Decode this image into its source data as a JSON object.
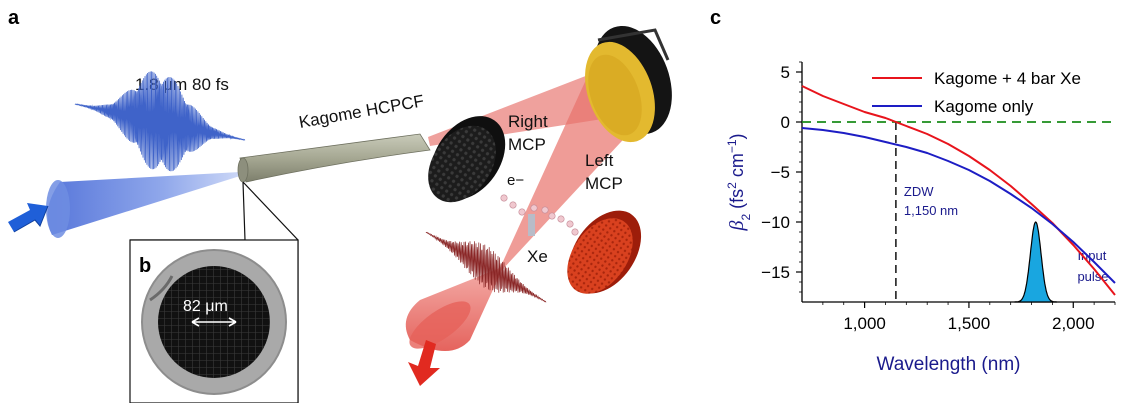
{
  "panels": {
    "a": "a",
    "b": "b",
    "c": "c"
  },
  "setup": {
    "pulse_label": "1.8 μm 80 fs",
    "fiber_label": "Kagome HCPCF",
    "right_mcp_line1": "Right",
    "right_mcp_line2": "MCP",
    "left_mcp_line1": "Left",
    "left_mcp_line2": "MCP",
    "electron_label": "e−",
    "gas_label": "Xe",
    "core_size_label": "82 μm"
  },
  "colors": {
    "beam_blue": "#6f8fe0",
    "beam_red": "#e8706a",
    "fiber_gray": "#a8aa98",
    "mcp_red": "#e0462a",
    "mcp_dark": "#1e1e1e",
    "mirror_gold": "#e3b92f",
    "curve_red": "#e8141c",
    "curve_blue": "#1d1dc4",
    "zero_line_green": "#1a8c1a",
    "pulse_fill": "#19a6e0",
    "axis_text_blue": "#1a1a8c"
  },
  "chart_data": {
    "type": "line",
    "xlabel": "Wavelength (nm)",
    "ylabel_beta": "β",
    "ylabel_sub": "2",
    "ylabel_units_open": " (fs",
    "ylabel_units_sup": "2",
    "ylabel_units_mid": " cm",
    "ylabel_units_sup2": "−1",
    "ylabel_units_close": ")",
    "xlim": [
      700,
      2200
    ],
    "ylim": [
      -18,
      6
    ],
    "x_ticks": [
      1000,
      1500,
      2000
    ],
    "x_tick_labels": [
      "1,000",
      "1,500",
      "2,000"
    ],
    "y_ticks": [
      5,
      0,
      -5,
      -10,
      -15
    ],
    "y_tick_labels": [
      "5",
      "0",
      "−5",
      "−10",
      "−15"
    ],
    "series": [
      {
        "name": "Kagome + 4 bar Xe",
        "color": "#e8141c",
        "x": [
          700,
          800,
          900,
          1000,
          1100,
          1150,
          1200,
          1300,
          1400,
          1500,
          1600,
          1700,
          1800,
          1900,
          2000,
          2100,
          2200
        ],
        "y": [
          3.6,
          2.6,
          1.8,
          1.0,
          0.4,
          0.0,
          -0.4,
          -1.2,
          -2.2,
          -3.4,
          -4.8,
          -6.4,
          -8.2,
          -10.1,
          -12.3,
          -14.7,
          -17.3
        ]
      },
      {
        "name": "Kagome only",
        "color": "#1d1dc4",
        "x": [
          700,
          800,
          900,
          1000,
          1100,
          1200,
          1300,
          1400,
          1500,
          1600,
          1700,
          1800,
          1900,
          2000,
          2100,
          2200
        ],
        "y": [
          -0.6,
          -0.8,
          -1.1,
          -1.5,
          -2.0,
          -2.5,
          -3.1,
          -3.9,
          -4.8,
          -5.9,
          -7.2,
          -8.6,
          -10.2,
          -12.0,
          -14.0,
          -16.1
        ]
      }
    ],
    "zero_line": {
      "y": 0,
      "style": "dashed"
    },
    "zdw": {
      "x": 1150,
      "label_line1": "ZDW",
      "label_line2": "1,150 nm"
    },
    "input_pulse": {
      "center": 1820,
      "fwhm": 60,
      "peak": -10,
      "label_line1": "Input",
      "label_line2": "pulse"
    },
    "legend_position": "top-right"
  }
}
